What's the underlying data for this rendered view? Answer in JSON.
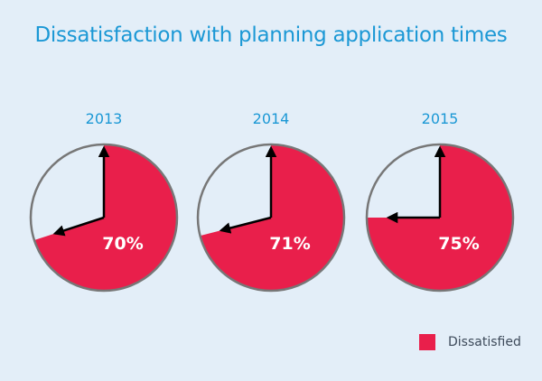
{
  "chart_data": {
    "type": "pie",
    "title": "Dissatisfaction with planning application times",
    "charts": [
      {
        "year": "2013",
        "value": 70,
        "label": "70%"
      },
      {
        "year": "2014",
        "value": 71,
        "label": "71%"
      },
      {
        "year": "2015",
        "value": 75,
        "label": "75%"
      }
    ],
    "legend": [
      {
        "name": "Dissatisfied",
        "color": "#e91f4b"
      }
    ],
    "legend_position": "bottom-right",
    "colors": {
      "slice": "#e91f4b",
      "remainder": "#e3eef8",
      "outline": "#777777",
      "title": "#1b98d5"
    }
  }
}
